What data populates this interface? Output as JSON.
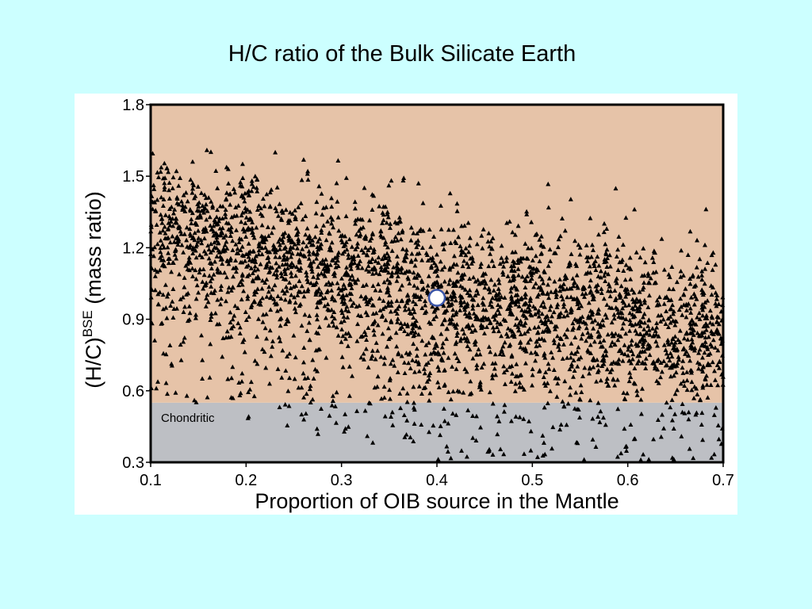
{
  "slide": {
    "title": "H/C ratio of the Bulk Silicate Earth"
  },
  "chart_data": {
    "type": "scatter",
    "title": "",
    "xlabel": "Proportion of OIB source in the Mantle",
    "ylabel_prefix": "(H/C)",
    "ylabel_superscript": "BSE",
    "ylabel_suffix": " (mass ratio)",
    "xlim": [
      0.1,
      0.7
    ],
    "ylim": [
      0.3,
      1.8
    ],
    "x_ticks": [
      "0.1",
      "0.2",
      "0.3",
      "0.4",
      "0.5",
      "0.6",
      "0.7"
    ],
    "y_ticks": [
      "0.3",
      "0.6",
      "0.9",
      "1.2",
      "1.5",
      "1.8"
    ],
    "grid": false,
    "regions": [
      {
        "name": "Chondritic",
        "y_range": [
          0.3,
          0.55
        ],
        "color": "#bdbfc4"
      },
      {
        "name": "",
        "y_range": [
          0.55,
          1.8
        ],
        "color": "#e6c3a8"
      }
    ],
    "series": [
      {
        "marker": "triangle",
        "color": "#000000",
        "point_count": 3200,
        "trend": {
          "x": [
            0.1,
            0.4,
            0.7
          ],
          "y_center": [
            1.28,
            1.0,
            0.83
          ],
          "y_spread": 0.17
        }
      },
      {
        "marker": "circle",
        "color": "#ffffff",
        "edge_color": "#3a55a8",
        "points": [
          {
            "x": 0.4,
            "y": 0.99
          }
        ]
      }
    ]
  }
}
